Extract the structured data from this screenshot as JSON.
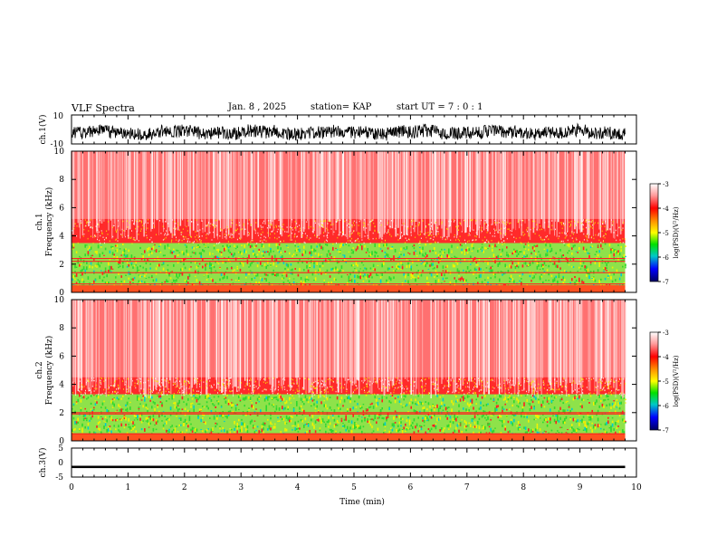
{
  "header": {
    "title": "VLF Spectra",
    "date": "Jan. 8 , 2025",
    "station": "station= KAP",
    "start": "start UT =   7 : 0 : 1"
  },
  "chart_data": [
    {
      "type": "line",
      "panel": "ch1-waveform",
      "ylabel": "ch.1(V)",
      "ylim": [
        -10,
        10
      ],
      "yticks": [
        "10",
        "-10"
      ],
      "xlim": [
        0,
        10
      ],
      "note_series": "dense oscillating waveform centered near -2 V, peak-to-peak about 8 V"
    },
    {
      "type": "heatmap",
      "panel": "ch1-spectrogram",
      "ylabel": "Frequency (kHz)",
      "channel_label": "ch.1",
      "ylim": [
        0,
        10
      ],
      "yticks": [
        "0",
        "2",
        "4",
        "6",
        "8",
        "10"
      ],
      "xlim": [
        0,
        9.8
      ],
      "bands": [
        {
          "from_khz": 0,
          "to_khz": 0.5,
          "level": "orange-red"
        },
        {
          "from_khz": 0.5,
          "to_khz": 3.5,
          "level": "green-yellow"
        },
        {
          "from_khz": 3.5,
          "to_khz": 5.2,
          "level": "red"
        },
        {
          "from_khz": 5.2,
          "to_khz": 10,
          "level": "red-white streaks"
        }
      ],
      "lines_khz": [
        0.6,
        1.4,
        2.2,
        2.4
      ],
      "colorbar": {
        "label": "log(PSD)(V²/Hz)",
        "ticks": [
          "-3",
          "-4",
          "-5",
          "-6",
          "-7"
        ],
        "range": [
          -7,
          -3
        ]
      }
    },
    {
      "type": "heatmap",
      "panel": "ch2-spectrogram",
      "ylabel": "Frequency (kHz)",
      "channel_label": "ch.2",
      "ylim": [
        0,
        10
      ],
      "yticks": [
        "0",
        "2",
        "4",
        "6",
        "8",
        "10"
      ],
      "xlim": [
        0,
        9.8
      ],
      "bands": [
        {
          "from_khz": 0,
          "to_khz": 0.5,
          "level": "orange-red"
        },
        {
          "from_khz": 0.5,
          "to_khz": 3.3,
          "level": "green-yellow"
        },
        {
          "from_khz": 3.3,
          "to_khz": 4.5,
          "level": "red"
        },
        {
          "from_khz": 4.5,
          "to_khz": 10,
          "level": "red-white streaks"
        }
      ],
      "lines_khz": [
        0.5,
        1.9,
        2.0
      ],
      "colorbar": {
        "label": "log(PSD)(V²/Hz)",
        "ticks": [
          "-3",
          "-4",
          "-5",
          "-6",
          "-7"
        ],
        "range": [
          -7,
          -3
        ]
      }
    },
    {
      "type": "line",
      "panel": "ch3-waveform",
      "ylabel": "ch.3(V)",
      "ylim": [
        -5,
        5
      ],
      "yticks": [
        "5",
        "0",
        "-5"
      ],
      "xlim": [
        0,
        10
      ],
      "xlabel": "Time (min)",
      "xticks": [
        "0",
        "1",
        "2",
        "3",
        "4",
        "5",
        "6",
        "7",
        "8",
        "9",
        "10"
      ],
      "note_series": "constant thick band near -1.5 V"
    }
  ],
  "colors": {
    "white": "#ffffff",
    "red": "#ff2020",
    "orange": "#ff8c1a",
    "yellow": "#f2f200",
    "green": "#2ed82e",
    "cyan": "#00cccc",
    "blue": "#1a1aff",
    "navy": "#000070"
  }
}
